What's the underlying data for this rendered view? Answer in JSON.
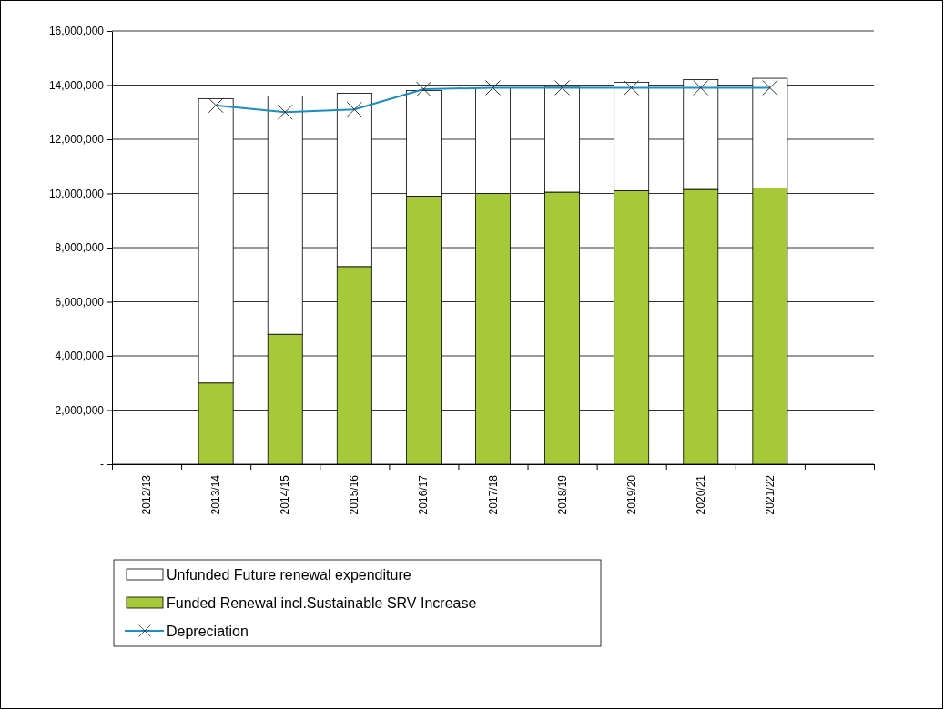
{
  "chart_data": {
    "type": "bar",
    "stacked": true,
    "categories": [
      "2012/13",
      "2013/14",
      "2014/15",
      "2015/16",
      "2016/17",
      "2017/18",
      "2018/19",
      "2019/20",
      "2020/21",
      "2021/22",
      null
    ],
    "series": [
      {
        "name": "Funded Renewal incl.Sustainable SRV Increase",
        "color": "#a6c93a",
        "values": [
          null,
          3000000,
          4800000,
          7300000,
          9900000,
          10000000,
          10050000,
          10100000,
          10150000,
          10200000,
          null
        ]
      },
      {
        "name": "Unfunded Future renewal expenditure",
        "color": "#ffffff",
        "values": [
          null,
          10500000,
          8800000,
          6400000,
          3900000,
          3900000,
          3900000,
          4000000,
          4050000,
          4050000,
          null
        ]
      },
      {
        "name": "Depreciation",
        "type": "line",
        "color": "#1a8fc4",
        "marker": "cross",
        "values": [
          null,
          13250000,
          13000000,
          13100000,
          13850000,
          13900000,
          13900000,
          13900000,
          13900000,
          13900000,
          null
        ]
      }
    ],
    "ylim": [
      0,
      16000000
    ],
    "yticks": [
      {
        "value": 0,
        "label": "-"
      },
      {
        "value": 2000000,
        "label": "2,000,000"
      },
      {
        "value": 4000000,
        "label": "4,000,000"
      },
      {
        "value": 6000000,
        "label": "6,000,000"
      },
      {
        "value": 8000000,
        "label": "8,000,000"
      },
      {
        "value": 10000000,
        "label": "10,000,000"
      },
      {
        "value": 12000000,
        "label": "12,000,000"
      },
      {
        "value": 14000000,
        "label": "14,000,000"
      },
      {
        "value": 16000000,
        "label": "16,000,000"
      }
    ],
    "grid": "y",
    "legend": "bottom"
  }
}
